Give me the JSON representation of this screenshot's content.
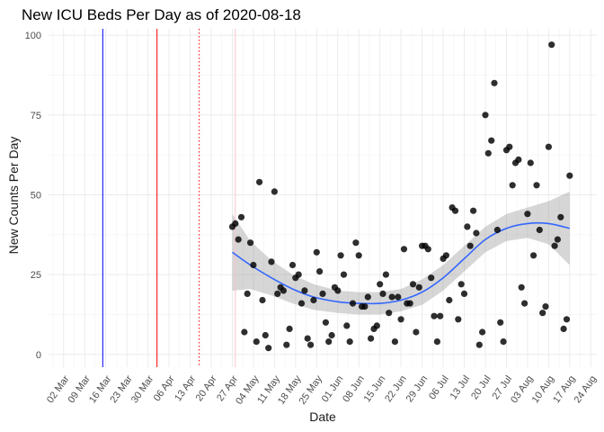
{
  "chart_data": {
    "type": "scatter",
    "title": "New ICU Beds Per Day as of 2020-08-18",
    "xlabel": "Date",
    "ylabel": "New Counts Per Day",
    "xlim": [
      "2020-02-26",
      "2020-08-26"
    ],
    "ylim": [
      -4,
      102
    ],
    "grid": true,
    "legend": "none",
    "x_ticks": [
      "2020-03-02",
      "2020-03-09",
      "2020-03-16",
      "2020-03-23",
      "2020-03-30",
      "2020-04-06",
      "2020-04-13",
      "2020-04-20",
      "2020-04-27",
      "2020-05-04",
      "2020-05-11",
      "2020-05-18",
      "2020-05-25",
      "2020-06-01",
      "2020-06-08",
      "2020-06-15",
      "2020-06-22",
      "2020-06-29",
      "2020-07-06",
      "2020-07-13",
      "2020-07-20",
      "2020-07-27",
      "2020-08-03",
      "2020-08-10",
      "2020-08-17",
      "2020-08-24"
    ],
    "x_tick_labels": [
      "02 Mar",
      "09 Mar",
      "16 Mar",
      "23 Mar",
      "30 Mar",
      "06 Apr",
      "13 Apr",
      "20 Apr",
      "27 Apr",
      "04 May",
      "11 May",
      "18 May",
      "25 May",
      "01 Jun",
      "08 Jun",
      "15 Jun",
      "22 Jun",
      "29 Jun",
      "06 Jul",
      "13 Jul",
      "20 Jul",
      "27 Jul",
      "03 Aug",
      "10 Aug",
      "17 Aug",
      "24 Aug"
    ],
    "y_ticks": [
      0,
      25,
      50,
      75,
      100
    ],
    "y_tick_labels": [
      "0",
      "25",
      "50",
      "75",
      "100"
    ],
    "vlines": [
      {
        "x": "2020-03-15",
        "color": "#0000ff",
        "style": "solid"
      },
      {
        "x": "2020-04-02",
        "color": "#ff0000",
        "style": "solid"
      },
      {
        "x": "2020-04-16",
        "color": "#ff0000",
        "style": "dotted"
      },
      {
        "x": "2020-04-28",
        "color": "#ffc0cb",
        "style": "solid"
      }
    ],
    "series": [
      {
        "type": "scatter",
        "color": "#000000",
        "points": [
          [
            "2020-04-27",
            40
          ],
          [
            "2020-04-28",
            41
          ],
          [
            "2020-04-29",
            36
          ],
          [
            "2020-04-30",
            43
          ],
          [
            "2020-05-01",
            7
          ],
          [
            "2020-05-02",
            19
          ],
          [
            "2020-05-03",
            35
          ],
          [
            "2020-05-04",
            28
          ],
          [
            "2020-05-05",
            4
          ],
          [
            "2020-05-06",
            54
          ],
          [
            "2020-05-07",
            17
          ],
          [
            "2020-05-08",
            6
          ],
          [
            "2020-05-09",
            2
          ],
          [
            "2020-05-10",
            29
          ],
          [
            "2020-05-11",
            51
          ],
          [
            "2020-05-12",
            19
          ],
          [
            "2020-05-13",
            21
          ],
          [
            "2020-05-14",
            20
          ],
          [
            "2020-05-15",
            3
          ],
          [
            "2020-05-16",
            8
          ],
          [
            "2020-05-17",
            28
          ],
          [
            "2020-05-18",
            24
          ],
          [
            "2020-05-19",
            25
          ],
          [
            "2020-05-20",
            16
          ],
          [
            "2020-05-21",
            20
          ],
          [
            "2020-05-22",
            5
          ],
          [
            "2020-05-23",
            3
          ],
          [
            "2020-05-24",
            17
          ],
          [
            "2020-05-25",
            32
          ],
          [
            "2020-05-26",
            26
          ],
          [
            "2020-05-27",
            19
          ],
          [
            "2020-05-28",
            10
          ],
          [
            "2020-05-29",
            4
          ],
          [
            "2020-05-30",
            6
          ],
          [
            "2020-05-31",
            21
          ],
          [
            "2020-06-01",
            20
          ],
          [
            "2020-06-02",
            31
          ],
          [
            "2020-06-03",
            25
          ],
          [
            "2020-06-04",
            9
          ],
          [
            "2020-06-05",
            4
          ],
          [
            "2020-06-06",
            16
          ],
          [
            "2020-06-07",
            35
          ],
          [
            "2020-06-08",
            31
          ],
          [
            "2020-06-09",
            15
          ],
          [
            "2020-06-10",
            15
          ],
          [
            "2020-06-11",
            18
          ],
          [
            "2020-06-12",
            5
          ],
          [
            "2020-06-13",
            8
          ],
          [
            "2020-06-14",
            9
          ],
          [
            "2020-06-15",
            22
          ],
          [
            "2020-06-16",
            19
          ],
          [
            "2020-06-17",
            25
          ],
          [
            "2020-06-18",
            13
          ],
          [
            "2020-06-19",
            18
          ],
          [
            "2020-06-20",
            4
          ],
          [
            "2020-06-21",
            18
          ],
          [
            "2020-06-22",
            11
          ],
          [
            "2020-06-23",
            33
          ],
          [
            "2020-06-24",
            16
          ],
          [
            "2020-06-25",
            16
          ],
          [
            "2020-06-26",
            22
          ],
          [
            "2020-06-27",
            7
          ],
          [
            "2020-06-28",
            21
          ],
          [
            "2020-06-29",
            34
          ],
          [
            "2020-06-30",
            34
          ],
          [
            "2020-07-01",
            33
          ],
          [
            "2020-07-02",
            24
          ],
          [
            "2020-07-03",
            12
          ],
          [
            "2020-07-04",
            4
          ],
          [
            "2020-07-05",
            12
          ],
          [
            "2020-07-06",
            30
          ],
          [
            "2020-07-07",
            31
          ],
          [
            "2020-07-08",
            17
          ],
          [
            "2020-07-09",
            46
          ],
          [
            "2020-07-10",
            45
          ],
          [
            "2020-07-11",
            11
          ],
          [
            "2020-07-12",
            22
          ],
          [
            "2020-07-13",
            19
          ],
          [
            "2020-07-14",
            40
          ],
          [
            "2020-07-15",
            34
          ],
          [
            "2020-07-16",
            45
          ],
          [
            "2020-07-17",
            38
          ],
          [
            "2020-07-18",
            3
          ],
          [
            "2020-07-19",
            7
          ],
          [
            "2020-07-20",
            75
          ],
          [
            "2020-07-21",
            63
          ],
          [
            "2020-07-22",
            67
          ],
          [
            "2020-07-23",
            85
          ],
          [
            "2020-07-24",
            39
          ],
          [
            "2020-07-25",
            10
          ],
          [
            "2020-07-26",
            4
          ],
          [
            "2020-07-27",
            64
          ],
          [
            "2020-07-28",
            65
          ],
          [
            "2020-07-29",
            53
          ],
          [
            "2020-07-30",
            60
          ],
          [
            "2020-07-31",
            61
          ],
          [
            "2020-08-01",
            21
          ],
          [
            "2020-08-02",
            16
          ],
          [
            "2020-08-03",
            44
          ],
          [
            "2020-08-04",
            60
          ],
          [
            "2020-08-05",
            31
          ],
          [
            "2020-08-06",
            53
          ],
          [
            "2020-08-07",
            39
          ],
          [
            "2020-08-08",
            13
          ],
          [
            "2020-08-09",
            15
          ],
          [
            "2020-08-10",
            65
          ],
          [
            "2020-08-11",
            97
          ],
          [
            "2020-08-12",
            34
          ],
          [
            "2020-08-13",
            36
          ],
          [
            "2020-08-14",
            43
          ],
          [
            "2020-08-15",
            8
          ],
          [
            "2020-08-16",
            11
          ],
          [
            "2020-08-17",
            56
          ]
        ]
      },
      {
        "type": "line",
        "smooth": "loess",
        "color": "#3366ff",
        "band_color": "#999999",
        "points": [
          [
            "2020-04-27",
            32,
            20,
            44
          ],
          [
            "2020-05-03",
            28,
            20.5,
            35.5
          ],
          [
            "2020-05-10",
            24,
            18.5,
            29.5
          ],
          [
            "2020-05-17",
            20.5,
            16,
            25
          ],
          [
            "2020-05-24",
            18,
            14,
            22
          ],
          [
            "2020-06-01",
            16.5,
            13,
            20
          ],
          [
            "2020-06-08",
            16,
            12.5,
            19.5
          ],
          [
            "2020-06-15",
            16,
            12.5,
            19.5
          ],
          [
            "2020-06-22",
            17,
            13.5,
            20.5
          ],
          [
            "2020-06-29",
            19.5,
            15.5,
            23.5
          ],
          [
            "2020-07-06",
            24,
            20,
            28
          ],
          [
            "2020-07-13",
            30,
            26,
            34
          ],
          [
            "2020-07-20",
            36,
            32,
            40
          ],
          [
            "2020-07-27",
            39.5,
            35.5,
            44
          ],
          [
            "2020-08-03",
            41,
            36.5,
            46
          ],
          [
            "2020-08-10",
            41,
            34.5,
            48
          ],
          [
            "2020-08-17",
            39.5,
            28,
            51
          ]
        ]
      }
    ]
  }
}
